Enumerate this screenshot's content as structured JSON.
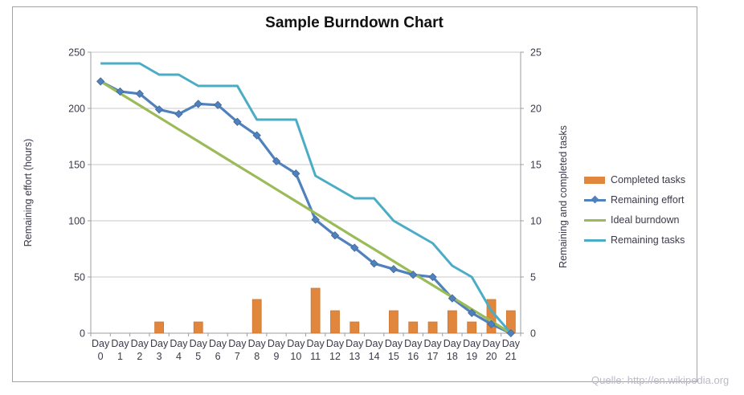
{
  "title": "Sample Burndown Chart",
  "left_axis": {
    "label": "Remaining effort (hours)",
    "ticks": [
      0,
      50,
      100,
      150,
      200,
      250
    ]
  },
  "right_axis": {
    "label": "Remaining and  completed tasks",
    "ticks": [
      0,
      5,
      10,
      15,
      20,
      25
    ]
  },
  "watermark": "Quelle: http://en.wikipedia.org",
  "colors": {
    "completed_tasks": "#e0873d",
    "completed_tasks_edge": "#cf742e",
    "remaining_effort": "#4f81bd",
    "ideal_burndown": "#9bbb59",
    "remaining_tasks": "#4bacc6",
    "gridline": "#c8c8c8",
    "axis_line": "#9e9ea0",
    "tick_text": "#3a3a4a"
  },
  "chart_data": {
    "type": "bar+line combo, dual axis",
    "categories": [
      "Day 0",
      "Day 1",
      "Day 2",
      "Day 3",
      "Day 4",
      "Day 5",
      "Day 6",
      "Day 7",
      "Day 8",
      "Day 9",
      "Day 10",
      "Day 11",
      "Day 12",
      "Day 13",
      "Day 14",
      "Day 15",
      "Day 16",
      "Day 17",
      "Day 18",
      "Day 19",
      "Day 20",
      "Day 21"
    ],
    "title": "Sample Burndown Chart",
    "left_ylabel": "Remaining effort (hours)",
    "right_ylabel": "Remaining and  completed tasks",
    "left_ylim": [
      0,
      250
    ],
    "right_ylim": [
      0,
      25
    ],
    "grid": true,
    "legend_position": "right",
    "series": [
      {
        "name": "Completed tasks",
        "type": "bar",
        "axis": "right",
        "color": "#e0873d",
        "values": [
          0,
          0,
          0,
          1,
          0,
          1,
          0,
          0,
          3,
          0,
          0,
          4,
          2,
          1,
          0,
          2,
          1,
          1,
          2,
          1,
          3,
          2
        ]
      },
      {
        "name": "Remaining effort",
        "type": "line",
        "marker": "diamond",
        "axis": "left",
        "color": "#4f81bd",
        "values": [
          224,
          215,
          213,
          199,
          195,
          204,
          203,
          188,
          176,
          153,
          142,
          101,
          87,
          76,
          62,
          57,
          52,
          50,
          31,
          18,
          8,
          0
        ]
      },
      {
        "name": "Ideal burndown",
        "type": "line",
        "axis": "left",
        "color": "#9bbb59",
        "values": [
          224,
          213.3,
          202.7,
          192,
          181.3,
          170.7,
          160,
          149.3,
          138.7,
          128,
          117.3,
          106.7,
          96,
          85.3,
          74.7,
          64,
          53.3,
          42.7,
          32,
          21.3,
          10.7,
          0
        ]
      },
      {
        "name": "Remaining tasks",
        "type": "line",
        "axis": "right",
        "color": "#4bacc6",
        "values": [
          24,
          24,
          24,
          23,
          23,
          22,
          22,
          22,
          19,
          19,
          19,
          14,
          13,
          12,
          12,
          10,
          9,
          8,
          6,
          5,
          2,
          0
        ]
      }
    ]
  }
}
